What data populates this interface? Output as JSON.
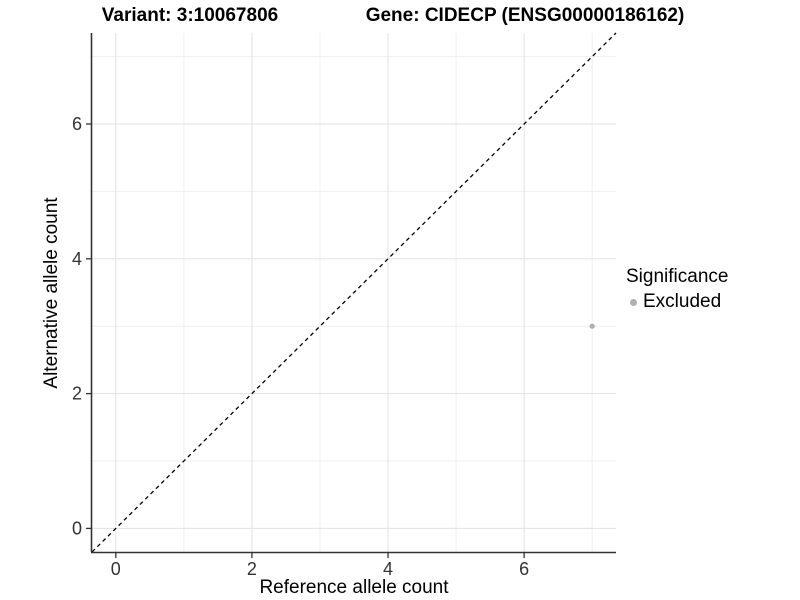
{
  "chart_data": {
    "type": "scatter",
    "title_left": "Variant: 3:10067806",
    "title_right": "Gene: CIDECP (ENSG00000186162)",
    "xlabel": "Reference allele count",
    "ylabel": "Alternative allele count",
    "xlim": [
      -0.35,
      7.35
    ],
    "ylim": [
      -0.35,
      7.35
    ],
    "x_major_ticks": [
      0,
      2,
      4,
      6
    ],
    "y_major_ticks": [
      0,
      2,
      4,
      6
    ],
    "x_minor_ticks": [
      1,
      3,
      5,
      7
    ],
    "y_minor_ticks": [
      1,
      3,
      5,
      7
    ],
    "grid": "major+minor",
    "series": [
      {
        "name": "Excluded",
        "color": "#b0b0b0",
        "points": [
          {
            "x": 7,
            "y": 3
          }
        ]
      }
    ],
    "identity_line": {
      "style": "dashed",
      "slope": 1,
      "intercept": 0,
      "color": "#000000"
    },
    "legend": {
      "title": "Significance",
      "position": "right",
      "entries": [
        {
          "label": "Excluded",
          "color": "#b0b0b0"
        }
      ]
    },
    "colors": {
      "grid_major": "#e2e2e2",
      "grid_minor": "#efefef",
      "axis_line": "#333333",
      "tick_label": "#333333"
    }
  }
}
